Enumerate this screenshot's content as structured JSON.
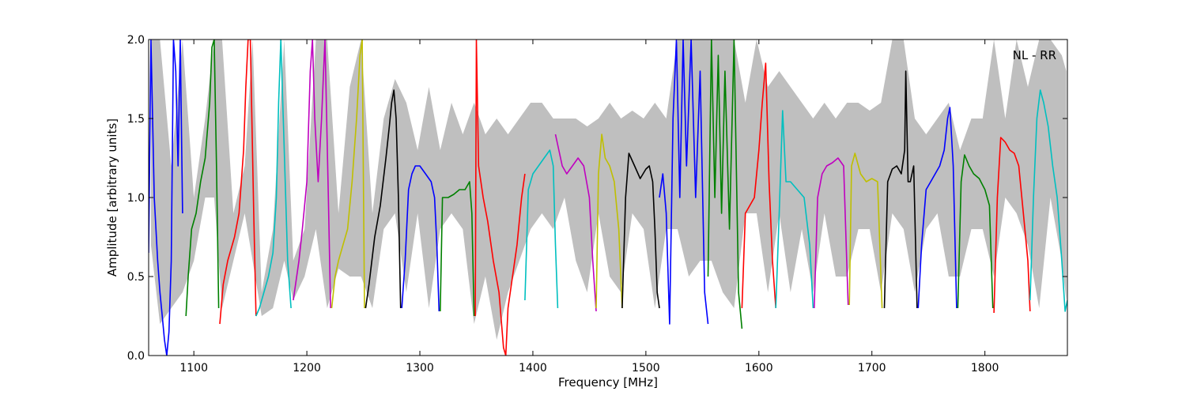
{
  "chart_data": {
    "type": "line",
    "title": "",
    "annotation": "NL - RR",
    "xlabel": "Frequency [MHz]",
    "ylabel": "Amplitude [arbitrary units]",
    "xlim": [
      1060,
      1873
    ],
    "ylim": [
      0.0,
      2.0
    ],
    "xticks": [
      1100,
      1200,
      1300,
      1400,
      1500,
      1600,
      1700,
      1800
    ],
    "xtick_labels": [
      "1100",
      "1200",
      "1300",
      "1400",
      "1500",
      "1600",
      "1700",
      "1800"
    ],
    "yticks": [
      0.0,
      0.5,
      1.0,
      1.5,
      2.0
    ],
    "ytick_labels": [
      "0.0",
      "0.5",
      "1.0",
      "1.5",
      "2.0"
    ],
    "grid": false,
    "legend": false,
    "background_envelope": {
      "color": "#bfbfbf",
      "x": [
        1062,
        1070,
        1080,
        1090,
        1100,
        1110,
        1118,
        1125,
        1135,
        1145,
        1152,
        1160,
        1170,
        1180,
        1188,
        1198,
        1208,
        1218,
        1228,
        1238,
        1248,
        1258,
        1268,
        1278,
        1288,
        1298,
        1308,
        1318,
        1328,
        1338,
        1348,
        1358,
        1368,
        1378,
        1388,
        1398,
        1408,
        1418,
        1428,
        1438,
        1448,
        1458,
        1468,
        1478,
        1488,
        1498,
        1508,
        1518,
        1528,
        1538,
        1548,
        1558,
        1568,
        1578,
        1588,
        1598,
        1608,
        1618,
        1628,
        1638,
        1648,
        1658,
        1668,
        1678,
        1688,
        1698,
        1708,
        1718,
        1728,
        1738,
        1748,
        1758,
        1768,
        1778,
        1788,
        1798,
        1808,
        1818,
        1828,
        1838,
        1848,
        1858,
        1868,
        1872
      ],
      "upper": [
        2.0,
        2.0,
        1.2,
        2.0,
        1.0,
        1.5,
        2.0,
        2.0,
        0.9,
        1.2,
        2.0,
        0.4,
        0.8,
        2.0,
        0.6,
        0.8,
        2.0,
        2.0,
        0.9,
        1.7,
        2.0,
        0.9,
        1.5,
        1.75,
        1.6,
        1.3,
        1.7,
        1.3,
        1.6,
        1.4,
        1.6,
        1.4,
        1.5,
        1.4,
        1.5,
        1.6,
        1.6,
        1.5,
        1.5,
        1.5,
        1.45,
        1.5,
        1.6,
        1.5,
        1.55,
        1.5,
        1.6,
        1.5,
        2.0,
        2.0,
        2.0,
        2.0,
        2.0,
        2.0,
        1.6,
        2.0,
        1.7,
        1.8,
        1.7,
        1.6,
        1.5,
        1.6,
        1.5,
        1.6,
        1.6,
        1.55,
        1.6,
        2.0,
        2.0,
        1.5,
        1.4,
        1.5,
        1.6,
        1.3,
        1.5,
        1.5,
        2.0,
        1.5,
        2.0,
        1.7,
        2.0,
        2.0,
        1.9,
        1.8
      ],
      "lower": [
        0.7,
        0.2,
        0.3,
        0.4,
        0.6,
        1.0,
        1.0,
        0.3,
        0.6,
        0.9,
        0.6,
        0.25,
        0.3,
        0.6,
        0.35,
        0.5,
        0.8,
        0.3,
        0.55,
        0.5,
        0.5,
        0.3,
        0.8,
        0.9,
        0.4,
        0.9,
        0.3,
        0.8,
        0.9,
        0.8,
        0.2,
        0.5,
        0.1,
        0.4,
        0.6,
        0.8,
        0.9,
        0.8,
        1.0,
        0.6,
        0.4,
        0.9,
        0.5,
        0.4,
        0.9,
        0.8,
        0.3,
        0.8,
        0.8,
        0.5,
        0.6,
        0.6,
        0.4,
        0.3,
        0.9,
        0.9,
        0.4,
        0.9,
        0.4,
        0.8,
        0.4,
        0.9,
        0.5,
        0.5,
        0.8,
        0.8,
        0.4,
        0.9,
        0.8,
        0.4,
        0.8,
        0.9,
        0.5,
        0.5,
        0.8,
        0.8,
        0.5,
        1.0,
        0.9,
        0.7,
        0.3,
        1.0,
        0.6,
        0.35
      ]
    },
    "series": [
      {
        "color": "#0000ff",
        "x": [
          1060,
          1062,
          1065,
          1068,
          1070,
          1072,
          1074,
          1076,
          1078,
          1080,
          1082,
          1084,
          1086,
          1088,
          1090
        ],
        "values": [
          0.65,
          2.0,
          1.0,
          0.6,
          0.4,
          0.25,
          0.1,
          0.0,
          0.15,
          0.6,
          2.0,
          1.8,
          1.2,
          2.0,
          0.9
        ]
      },
      {
        "color": "#008000",
        "x": [
          1093,
          1095,
          1098,
          1102,
          1106,
          1110,
          1114,
          1116,
          1118,
          1120,
          1122
        ],
        "values": [
          0.25,
          0.5,
          0.8,
          0.9,
          1.1,
          1.25,
          1.6,
          1.95,
          2.0,
          1.2,
          0.3
        ]
      },
      {
        "color": "#ff0000",
        "x": [
          1123,
          1126,
          1130,
          1136,
          1140,
          1144,
          1146,
          1148,
          1150,
          1153,
          1155
        ],
        "values": [
          0.2,
          0.45,
          0.6,
          0.75,
          0.9,
          1.3,
          1.7,
          2.0,
          2.0,
          0.9,
          0.25
        ]
      },
      {
        "color": "#00bfbf",
        "x": [
          1155,
          1158,
          1162,
          1166,
          1170,
          1173,
          1175,
          1177,
          1180,
          1183,
          1186
        ],
        "values": [
          0.25,
          0.3,
          0.4,
          0.5,
          0.65,
          1.0,
          1.6,
          2.0,
          1.3,
          0.6,
          0.3
        ]
      },
      {
        "color": "#bf00bf",
        "x": [
          1188,
          1190,
          1193,
          1196,
          1200,
          1203,
          1205,
          1207,
          1210,
          1213,
          1216,
          1219,
          1221
        ],
        "values": [
          0.35,
          0.45,
          0.6,
          0.8,
          1.1,
          1.8,
          2.0,
          1.5,
          1.1,
          1.5,
          2.0,
          1.0,
          0.3
        ]
      },
      {
        "color": "#bfbf00",
        "x": [
          1222,
          1225,
          1228,
          1232,
          1236,
          1240,
          1244,
          1247,
          1249,
          1251
        ],
        "values": [
          0.3,
          0.5,
          0.6,
          0.7,
          0.8,
          1.1,
          1.5,
          1.9,
          2.0,
          0.3
        ]
      },
      {
        "color": "#000000",
        "x": [
          1252,
          1255,
          1260,
          1265,
          1270,
          1273,
          1275,
          1277,
          1279,
          1281,
          1283
        ],
        "values": [
          0.3,
          0.45,
          0.75,
          0.95,
          1.25,
          1.45,
          1.6,
          1.68,
          1.5,
          1.0,
          0.3
        ]
      },
      {
        "color": "#0000ff",
        "x": [
          1284,
          1287,
          1290,
          1293,
          1296,
          1300,
          1305,
          1310,
          1313,
          1315,
          1317
        ],
        "values": [
          0.3,
          0.6,
          1.05,
          1.15,
          1.2,
          1.2,
          1.15,
          1.1,
          1.0,
          0.7,
          0.28
        ]
      },
      {
        "color": "#008000",
        "x": [
          1318,
          1320,
          1325,
          1330,
          1335,
          1340,
          1344,
          1346,
          1348
        ],
        "values": [
          0.28,
          1.0,
          1.0,
          1.02,
          1.05,
          1.05,
          1.1,
          0.9,
          0.25
        ]
      },
      {
        "color": "#ff0000",
        "x": [
          1349,
          1350,
          1352,
          1356,
          1360,
          1365,
          1370,
          1374,
          1376,
          1378,
          1382,
          1386,
          1390,
          1393
        ],
        "values": [
          0.25,
          2.0,
          1.2,
          1.0,
          0.85,
          0.6,
          0.4,
          0.05,
          0.0,
          0.3,
          0.5,
          0.7,
          1.0,
          1.15
        ]
      },
      {
        "color": "#00bfbf",
        "x": [
          1393,
          1396,
          1400,
          1405,
          1410,
          1415,
          1418,
          1420,
          1422
        ],
        "values": [
          0.35,
          1.05,
          1.15,
          1.2,
          1.25,
          1.3,
          1.2,
          0.7,
          0.3
        ]
      },
      {
        "color": "#bf00bf",
        "x": [
          1420,
          1423,
          1426,
          1430,
          1435,
          1440,
          1445,
          1450,
          1453,
          1456
        ],
        "values": [
          1.4,
          1.3,
          1.2,
          1.15,
          1.2,
          1.25,
          1.2,
          1.0,
          0.6,
          0.28
        ]
      },
      {
        "color": "#bfbf00",
        "x": [
          1456,
          1458,
          1461,
          1464,
          1468,
          1472,
          1476,
          1479
        ],
        "values": [
          0.3,
          1.15,
          1.4,
          1.25,
          1.2,
          1.1,
          0.8,
          0.3
        ]
      },
      {
        "color": "#000000",
        "x": [
          1479,
          1482,
          1485,
          1490,
          1495,
          1500,
          1503,
          1506,
          1508,
          1510,
          1512
        ],
        "values": [
          0.3,
          1.0,
          1.28,
          1.2,
          1.12,
          1.18,
          1.2,
          1.1,
          0.8,
          0.4,
          0.3
        ]
      },
      {
        "color": "#0000ff",
        "x": [
          1512,
          1515,
          1518,
          1521,
          1524,
          1527,
          1530,
          1533,
          1536,
          1540,
          1544,
          1548,
          1552,
          1555
        ],
        "values": [
          1.0,
          1.15,
          0.9,
          0.2,
          1.5,
          2.0,
          1.0,
          2.0,
          1.2,
          2.0,
          1.0,
          1.8,
          0.4,
          0.2
        ]
      },
      {
        "color": "#008000",
        "x": [
          1555,
          1558,
          1561,
          1564,
          1567,
          1570,
          1574,
          1578,
          1582,
          1585
        ],
        "values": [
          0.5,
          2.0,
          1.0,
          1.9,
          0.9,
          1.8,
          0.8,
          2.0,
          0.4,
          0.17
        ]
      },
      {
        "color": "#ff0000",
        "x": [
          1585,
          1588,
          1592,
          1596,
          1600,
          1603,
          1606,
          1609,
          1612,
          1615
        ],
        "values": [
          0.3,
          0.9,
          0.95,
          1.0,
          1.3,
          1.6,
          1.85,
          1.1,
          0.6,
          0.3
        ]
      },
      {
        "color": "#00bfbf",
        "x": [
          1615,
          1618,
          1621,
          1624,
          1628,
          1634,
          1640,
          1645,
          1648
        ],
        "values": [
          0.3,
          0.9,
          1.55,
          1.1,
          1.1,
          1.05,
          1.0,
          0.7,
          0.3
        ]
      },
      {
        "color": "#bf00bf",
        "x": [
          1649,
          1652,
          1656,
          1660,
          1665,
          1670,
          1675,
          1679
        ],
        "values": [
          0.3,
          1.0,
          1.15,
          1.2,
          1.22,
          1.25,
          1.2,
          0.32
        ]
      },
      {
        "color": "#bfbf00",
        "x": [
          1680,
          1682,
          1685,
          1690,
          1695,
          1700,
          1705,
          1709
        ],
        "values": [
          0.32,
          1.2,
          1.28,
          1.15,
          1.1,
          1.12,
          1.1,
          0.3
        ]
      },
      {
        "color": "#000000",
        "x": [
          1711,
          1714,
          1718,
          1722,
          1726,
          1729,
          1730,
          1732,
          1734,
          1737,
          1740
        ],
        "values": [
          0.3,
          1.1,
          1.18,
          1.2,
          1.15,
          1.3,
          1.8,
          1.1,
          1.1,
          1.2,
          0.3
        ]
      },
      {
        "color": "#0000ff",
        "x": [
          1741,
          1744,
          1748,
          1752,
          1756,
          1760,
          1764,
          1767,
          1769,
          1772,
          1775
        ],
        "values": [
          0.3,
          0.7,
          1.05,
          1.1,
          1.15,
          1.2,
          1.3,
          1.5,
          1.57,
          1.2,
          0.3
        ]
      },
      {
        "color": "#008000",
        "x": [
          1776,
          1779,
          1782,
          1786,
          1790,
          1795,
          1800,
          1804,
          1807
        ],
        "values": [
          0.3,
          1.1,
          1.27,
          1.2,
          1.15,
          1.12,
          1.05,
          0.95,
          0.3
        ]
      },
      {
        "color": "#ff0000",
        "x": [
          1808,
          1811,
          1814,
          1818,
          1822,
          1826,
          1830,
          1834,
          1838,
          1840
        ],
        "values": [
          0.27,
          1.0,
          1.38,
          1.35,
          1.3,
          1.28,
          1.2,
          0.9,
          0.6,
          0.28
        ]
      },
      {
        "color": "#00bfbf",
        "x": [
          1840,
          1843,
          1846,
          1849,
          1852,
          1856,
          1860,
          1864,
          1868,
          1871,
          1873
        ],
        "values": [
          0.35,
          1.0,
          1.5,
          1.68,
          1.6,
          1.45,
          1.2,
          1.0,
          0.6,
          0.28,
          0.35
        ]
      }
    ]
  }
}
